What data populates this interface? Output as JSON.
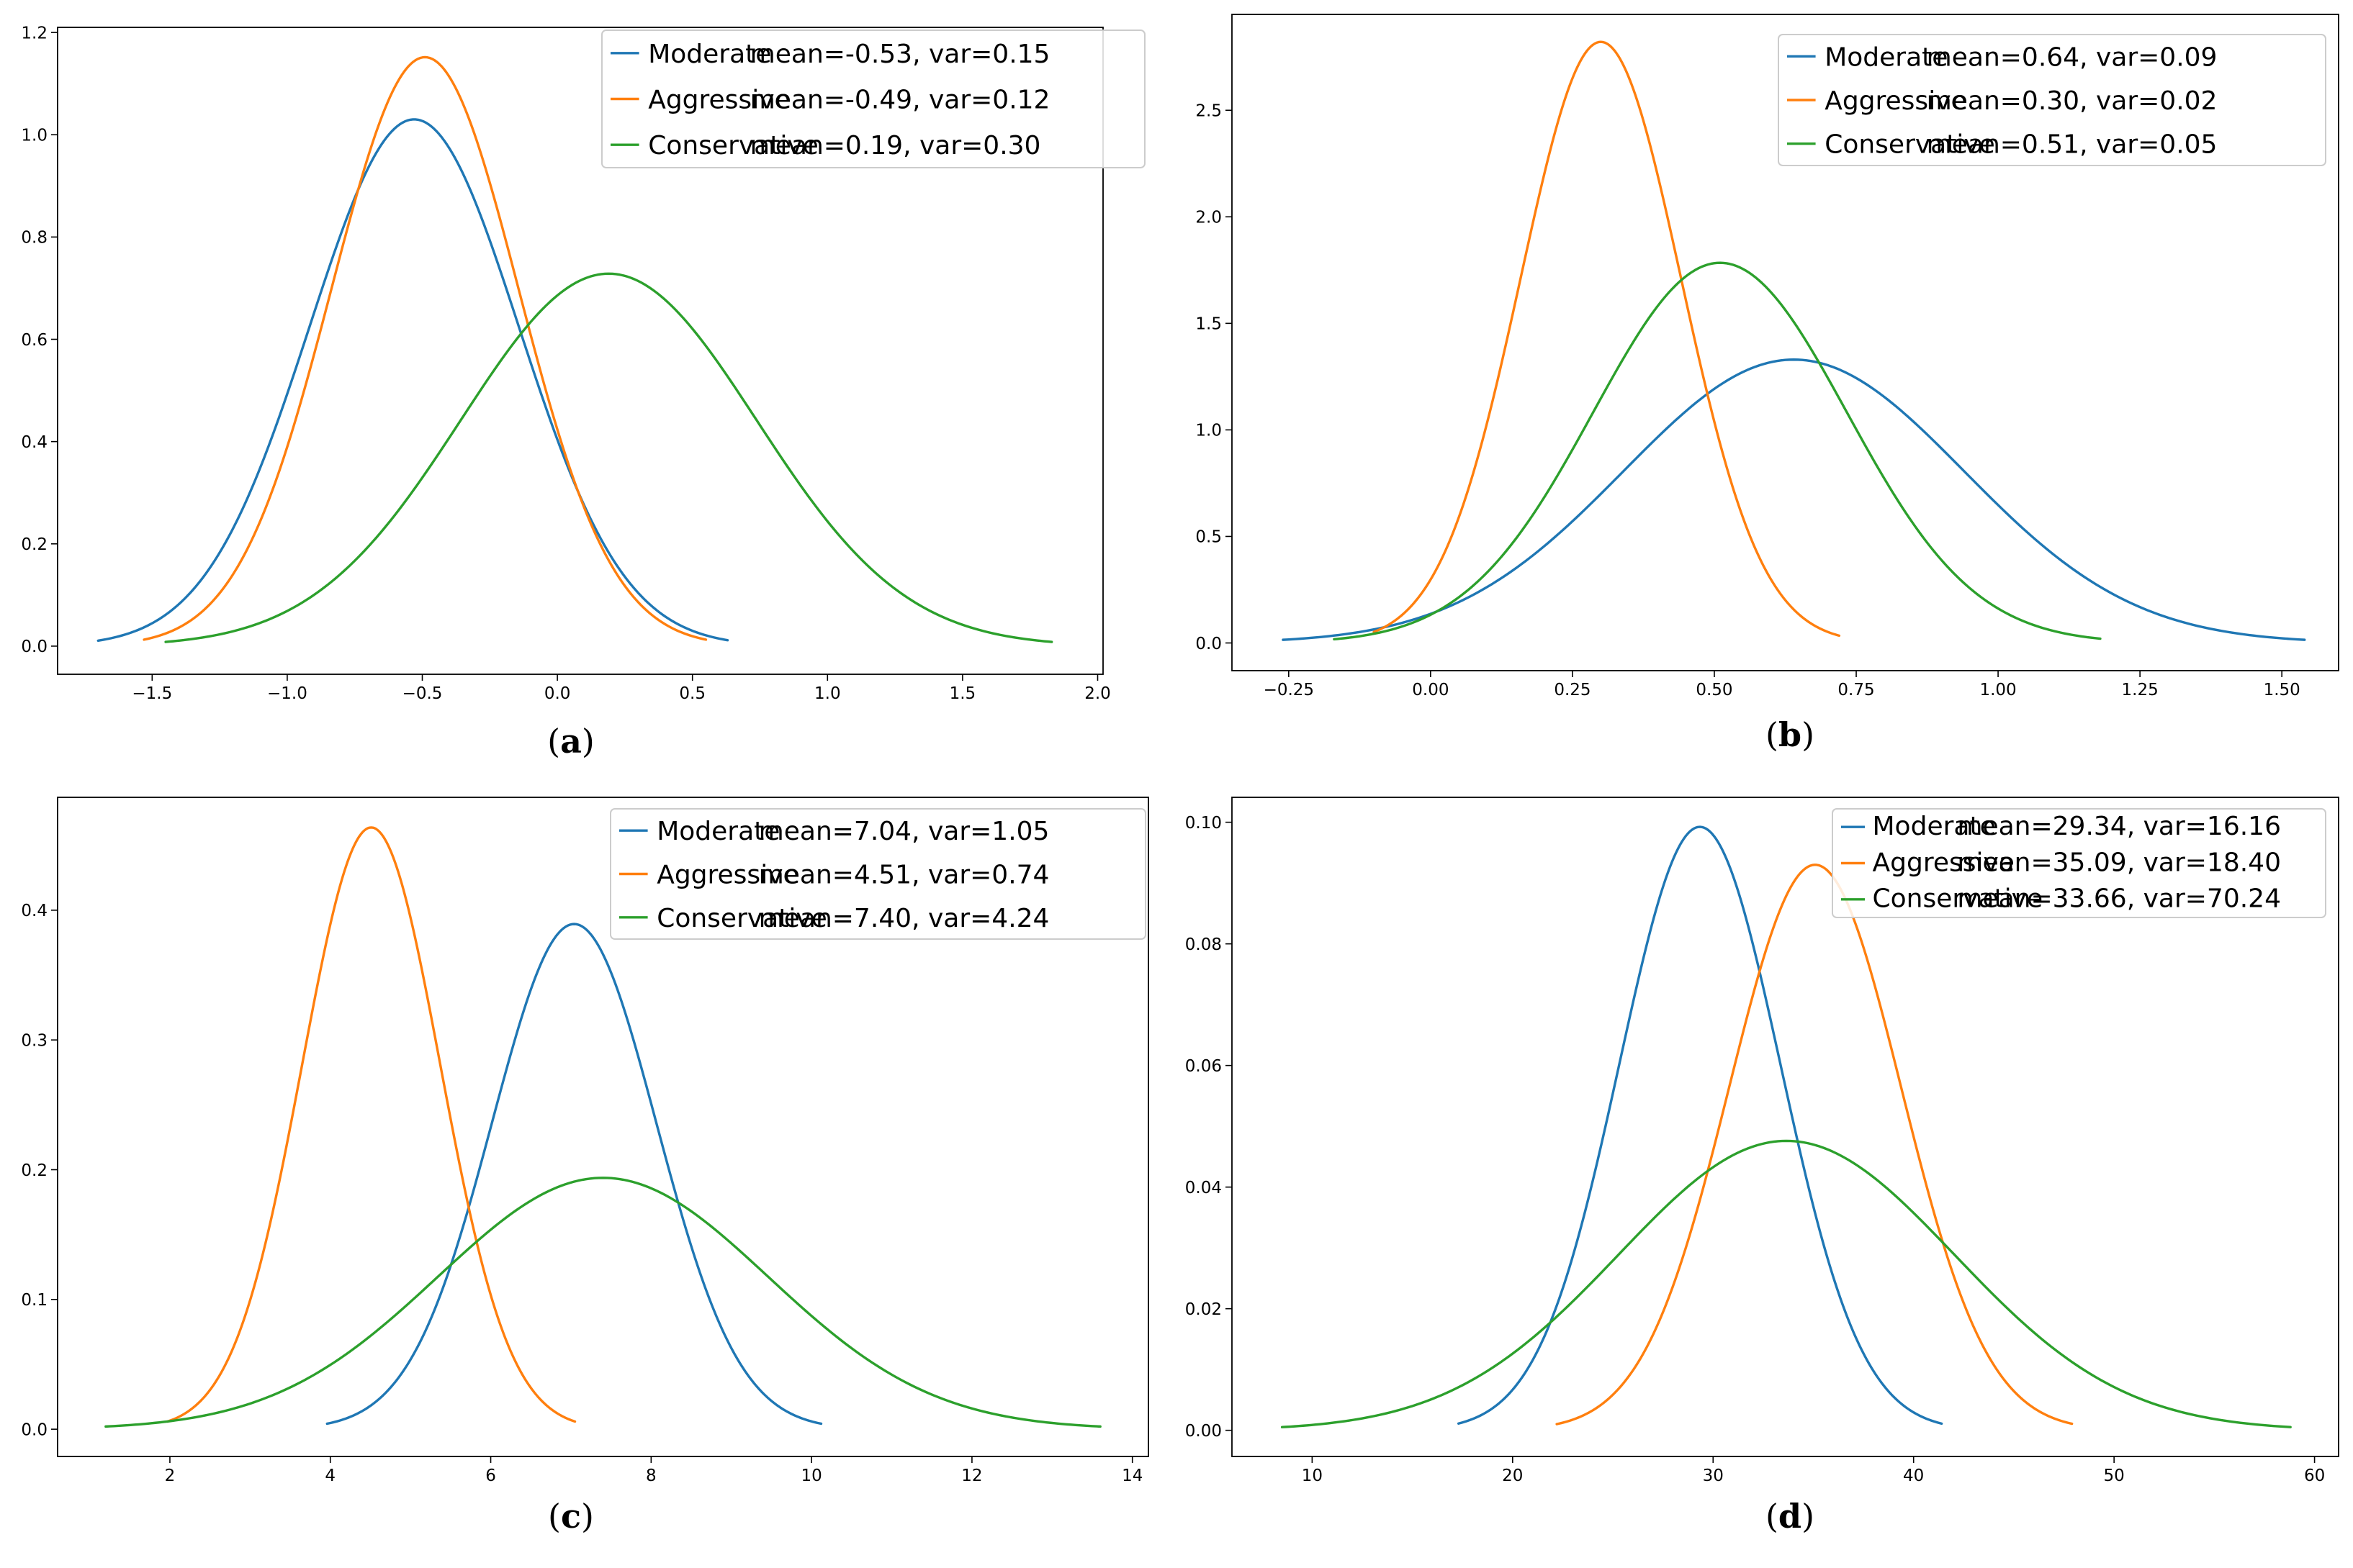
{
  "figure": {
    "colors": {
      "Moderate": "#1f77b4",
      "Aggressive": "#ff7f0e",
      "Conservative": "#2ca02c"
    }
  },
  "chart_data": [
    {
      "type": "line",
      "panel": "a",
      "caption": {
        "open": "(",
        "letter": "a",
        "close": ")"
      },
      "title": "",
      "xlabel": "",
      "ylabel": "",
      "xlim": [
        -1.85,
        2.02
      ],
      "ylim": [
        -0.055,
        1.21
      ],
      "xticks": [
        -1.5,
        -1.0,
        -0.5,
        0.0,
        0.5,
        1.0,
        1.5,
        2.0
      ],
      "xtick_labels": [
        "−1.5",
        "−1.0",
        "−0.5",
        "0.0",
        "0.5",
        "1.0",
        "1.5",
        "2.0"
      ],
      "yticks": [
        0.0,
        0.2,
        0.4,
        0.6,
        0.8,
        1.0,
        1.2
      ],
      "ytick_labels": [
        "0.0",
        "0.2",
        "0.4",
        "0.6",
        "0.8",
        "1.0",
        "1.2"
      ],
      "legend_position": "top-right",
      "series": [
        {
          "name": "Moderate",
          "stats": "mean=-0.53, var=0.15",
          "mean": -0.53,
          "var": 0.15,
          "x_range": [
            -1.7,
            0.63
          ]
        },
        {
          "name": "Aggressive",
          "stats": "mean=-0.49, var=0.12",
          "mean": -0.49,
          "var": 0.12,
          "x_range": [
            -1.53,
            0.55
          ]
        },
        {
          "name": "Conservative",
          "stats": "mean=0.19, var=0.30",
          "mean": 0.19,
          "var": 0.3,
          "x_range": [
            -1.45,
            1.83
          ]
        }
      ]
    },
    {
      "type": "line",
      "panel": "b",
      "caption": {
        "open": "(",
        "letter": "b",
        "close": ")"
      },
      "title": "",
      "xlabel": "",
      "ylabel": "",
      "xlim": [
        -0.35,
        1.6
      ],
      "ylim": [
        -0.13,
        2.95
      ],
      "xticks": [
        -0.25,
        0.0,
        0.25,
        0.5,
        0.75,
        1.0,
        1.25,
        1.5
      ],
      "xtick_labels": [
        "−0.25",
        "0.00",
        "0.25",
        "0.50",
        "0.75",
        "1.00",
        "1.25",
        "1.50"
      ],
      "yticks": [
        0.0,
        0.5,
        1.0,
        1.5,
        2.0,
        2.5
      ],
      "ytick_labels": [
        "0.0",
        "0.5",
        "1.0",
        "1.5",
        "2.0",
        "2.5"
      ],
      "legend_position": "top-right",
      "series": [
        {
          "name": "Moderate",
          "stats": "mean=0.64, var=0.09",
          "mean": 0.64,
          "var": 0.09,
          "x_range": [
            -0.26,
            1.54
          ]
        },
        {
          "name": "Aggressive",
          "stats": "mean=0.30, var=0.02",
          "mean": 0.3,
          "var": 0.02,
          "x_range": [
            -0.1,
            0.72
          ]
        },
        {
          "name": "Conservative",
          "stats": "mean=0.51, var=0.05",
          "mean": 0.51,
          "var": 0.05,
          "x_range": [
            -0.17,
            1.18
          ]
        }
      ]
    },
    {
      "type": "line",
      "panel": "c",
      "caption": {
        "open": "(",
        "letter": "c",
        "close": ")"
      },
      "title": "",
      "xlabel": "",
      "ylabel": "",
      "xlim": [
        0.6,
        14.2
      ],
      "ylim": [
        -0.021,
        0.487
      ],
      "xticks": [
        2,
        4,
        6,
        8,
        10,
        12,
        14
      ],
      "xtick_labels": [
        "2",
        "4",
        "6",
        "8",
        "10",
        "12",
        "14"
      ],
      "yticks": [
        0.0,
        0.1,
        0.2,
        0.3,
        0.4
      ],
      "ytick_labels": [
        "0.0",
        "0.1",
        "0.2",
        "0.3",
        "0.4"
      ],
      "legend_position": "top-right",
      "series": [
        {
          "name": "Moderate",
          "stats": "mean=7.04, var=1.05",
          "mean": 7.04,
          "var": 1.05,
          "x_range": [
            3.96,
            10.12
          ]
        },
        {
          "name": "Aggressive",
          "stats": "mean=4.51, var=0.74",
          "mean": 4.51,
          "var": 0.74,
          "x_range": [
            1.97,
            7.05
          ]
        },
        {
          "name": "Conservative",
          "stats": "mean=7.40, var=4.24",
          "mean": 7.4,
          "var": 4.24,
          "x_range": [
            1.2,
            13.6
          ]
        }
      ]
    },
    {
      "type": "line",
      "panel": "d",
      "caption": {
        "open": "(",
        "letter": "d",
        "close": ")"
      },
      "title": "",
      "xlabel": "",
      "ylabel": "",
      "xlim": [
        6.0,
        61.2
      ],
      "ylim": [
        -0.0043,
        0.1041
      ],
      "xticks": [
        10,
        20,
        30,
        40,
        50,
        60
      ],
      "xtick_labels": [
        "10",
        "20",
        "30",
        "40",
        "50",
        "60"
      ],
      "yticks": [
        0.0,
        0.02,
        0.04,
        0.06,
        0.08,
        0.1
      ],
      "ytick_labels": [
        "0.00",
        "0.02",
        "0.04",
        "0.06",
        "0.08",
        "0.10"
      ],
      "legend_position": "top-right",
      "series": [
        {
          "name": "Moderate",
          "stats": "mean=29.34, var=16.16",
          "mean": 29.34,
          "var": 16.16,
          "x_range": [
            17.3,
            41.4
          ]
        },
        {
          "name": "Aggressive",
          "stats": "mean=35.09, var=18.40",
          "mean": 35.09,
          "var": 18.4,
          "x_range": [
            22.2,
            47.9
          ]
        },
        {
          "name": "Conservative",
          "stats": "mean=33.66, var=70.24",
          "mean": 33.66,
          "var": 70.24,
          "x_range": [
            8.5,
            58.8
          ]
        }
      ]
    }
  ]
}
